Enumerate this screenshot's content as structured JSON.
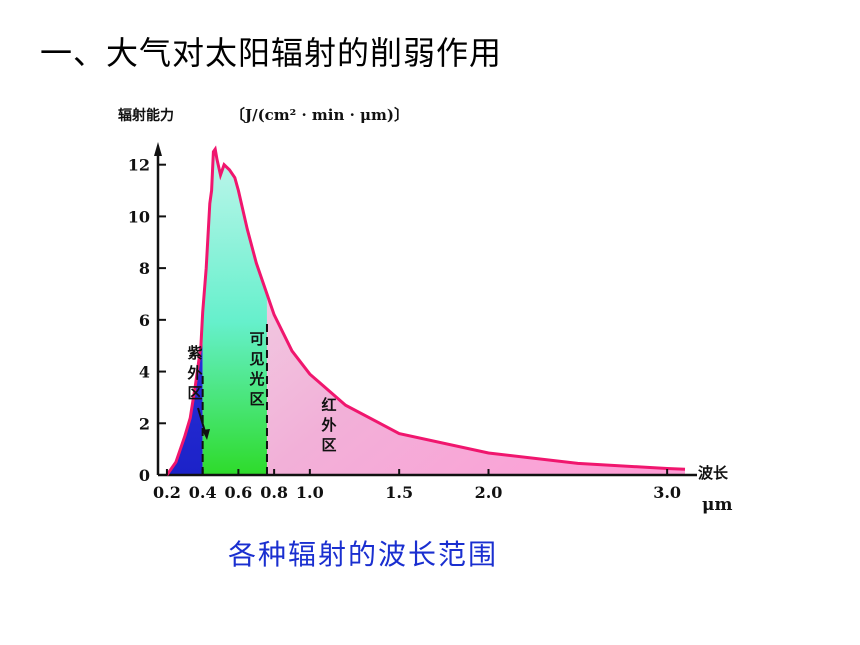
{
  "heading": "一、大气对太阳辐射的削弱作用",
  "caption": "各种辐射的波长范围",
  "chart_data": {
    "type": "area",
    "ylabel": "辐射能力",
    "yunit": "〔J/(cm² · min · μm)〕",
    "xlabel": "波长",
    "xunit": "μm",
    "xlim": [
      0.15,
      3.1
    ],
    "ylim": [
      0,
      12.8
    ],
    "yticks": [
      "0",
      "2",
      "4",
      "6",
      "8",
      "10",
      "12"
    ],
    "xticks": [
      "0.2",
      "0.4",
      "0.6",
      "0.8",
      "1.0",
      "1.5",
      "2.0",
      "3.0"
    ],
    "x": [
      0.2,
      0.25,
      0.3,
      0.33,
      0.36,
      0.39,
      0.4,
      0.42,
      0.44,
      0.45,
      0.46,
      0.47,
      0.48,
      0.5,
      0.52,
      0.55,
      0.58,
      0.6,
      0.65,
      0.7,
      0.8,
      0.9,
      1.0,
      1.2,
      1.5,
      2.0,
      2.5,
      3.0,
      3.1
    ],
    "values": [
      0.0,
      0.5,
      1.5,
      2.2,
      3.5,
      5.0,
      6.3,
      8.0,
      10.5,
      11.0,
      12.5,
      12.6,
      12.2,
      11.6,
      12.0,
      11.8,
      11.5,
      11.0,
      9.5,
      8.2,
      6.2,
      4.8,
      3.9,
      2.7,
      1.6,
      0.85,
      0.45,
      0.25,
      0.22
    ],
    "zones": [
      {
        "label": "紫外区",
        "from": 0.2,
        "to": 0.4,
        "color": "#2a35e0"
      },
      {
        "label": "可见光区",
        "from": 0.4,
        "to": 0.76,
        "color": "#3fe03c"
      },
      {
        "label": "红外区",
        "from": 0.76,
        "to": 3.1,
        "color": "#ff6fc0"
      }
    ],
    "line_color": "#f0166e",
    "boundaries": [
      0.4,
      0.76
    ]
  }
}
